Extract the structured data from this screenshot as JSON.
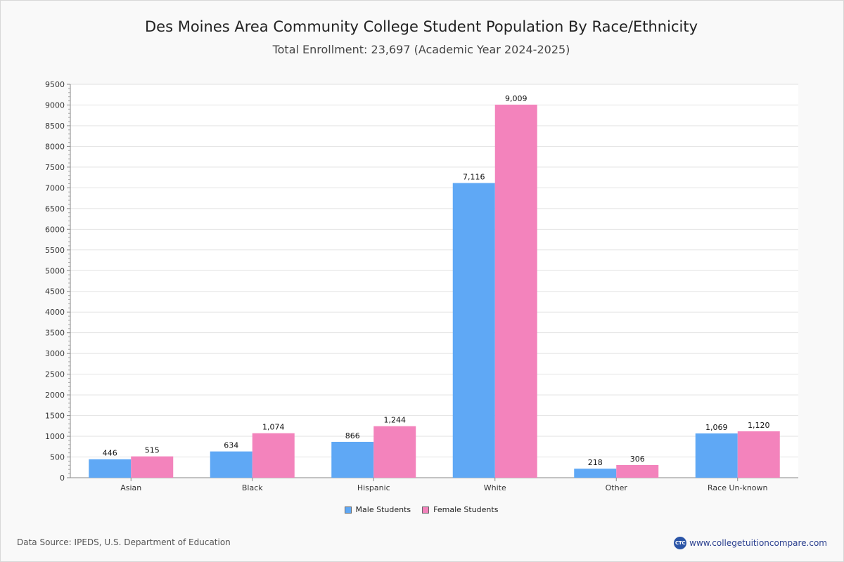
{
  "title": "Des Moines Area Community College Student Population By Race/Ethnicity",
  "subtitle": "Total Enrollment: 23,697 (Academic Year 2024-2025)",
  "footer": {
    "source": "Data Source: IPEDS, U.S. Department of Education",
    "site": "www.collegetuitioncompare.com",
    "logo_text": "CTC"
  },
  "colors": {
    "male": "#5fa8f5",
    "female": "#f383bc"
  },
  "chart_data": {
    "type": "bar",
    "categories": [
      "Asian",
      "Black",
      "Hispanic",
      "White",
      "Other",
      "Race Un-known"
    ],
    "series": [
      {
        "name": "Male Students",
        "values": [
          446,
          634,
          866,
          7116,
          218,
          1069
        ],
        "labels": [
          "446",
          "634",
          "866",
          "7,116",
          "218",
          "1,069"
        ]
      },
      {
        "name": "Female Students",
        "values": [
          515,
          1074,
          1244,
          9009,
          306,
          1120
        ],
        "labels": [
          "515",
          "1,074",
          "1,244",
          "9,009",
          "306",
          "1,120"
        ]
      }
    ],
    "ylim": [
      0,
      9500
    ],
    "yticks": [
      "0",
      "500",
      "1000",
      "1500",
      "2000",
      "2500",
      "3000",
      "3500",
      "4000",
      "4500",
      "5000",
      "5500",
      "6000",
      "6500",
      "7000",
      "7500",
      "8000",
      "8500",
      "9000",
      "9500"
    ],
    "grid": true,
    "legend_position": "bottom"
  }
}
